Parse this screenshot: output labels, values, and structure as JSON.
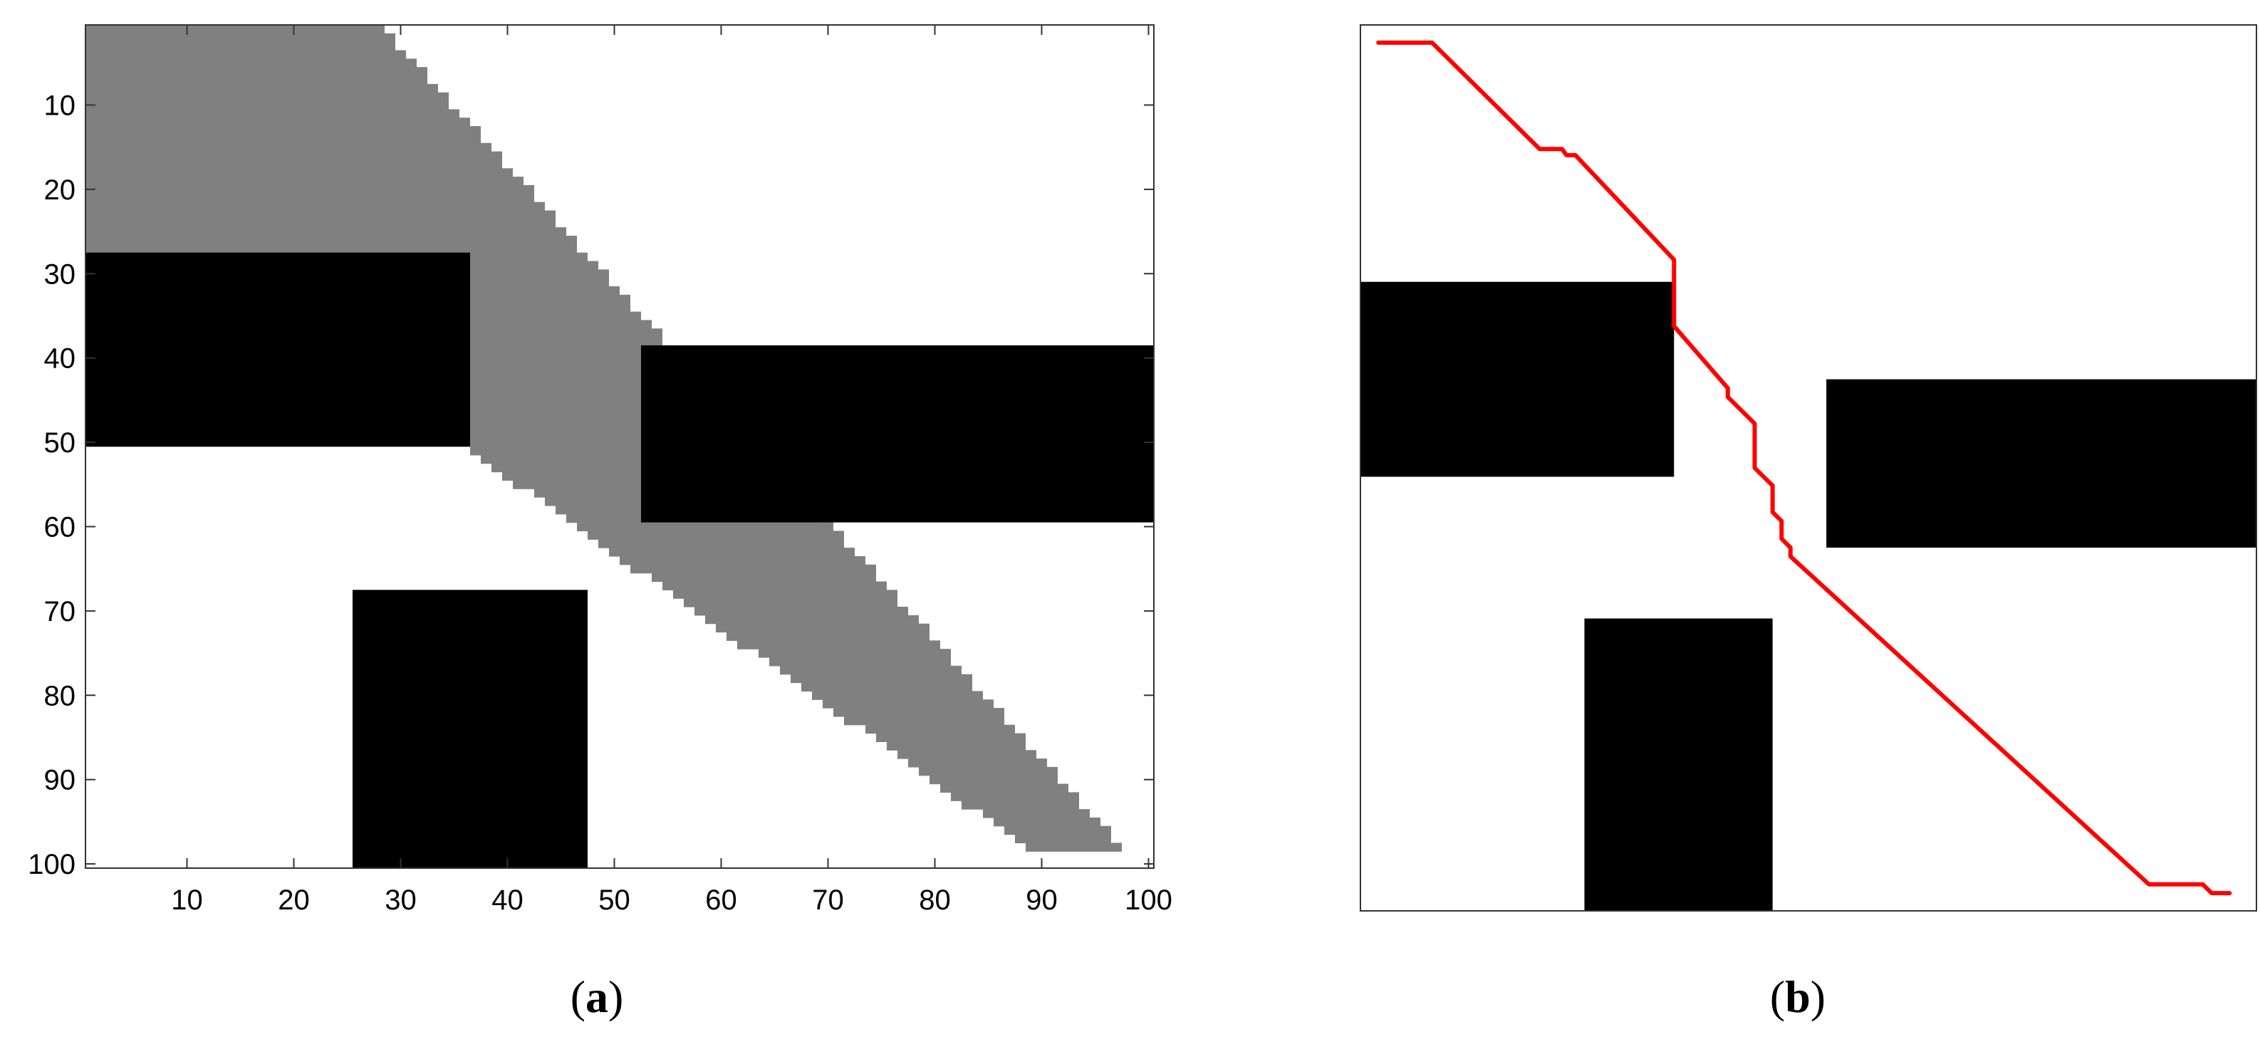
{
  "colors": {
    "free": "#ffffff",
    "obstacle": "#000000",
    "explored": "#808080",
    "path": "#ff0000",
    "frame": "#000000"
  },
  "panel_a": {
    "caption_open": "(",
    "caption_letter": "a",
    "caption_close": ")",
    "axes": {
      "x_range": [
        0.5,
        100.5
      ],
      "y_range": [
        0.5,
        100.5
      ],
      "y_inverted": true,
      "x_ticks": [
        "10",
        "20",
        "30",
        "40",
        "50",
        "60",
        "70",
        "80",
        "90",
        "100"
      ],
      "y_ticks": [
        "10",
        "20",
        "30",
        "40",
        "50",
        "60",
        "70",
        "80",
        "90",
        "100"
      ]
    },
    "obstacles": [
      {
        "x_range": [
          1,
          36
        ],
        "y_range": [
          28,
          50
        ]
      },
      {
        "x_range": [
          53,
          100
        ],
        "y_range": [
          39,
          59
        ]
      },
      {
        "x_range": [
          26,
          47
        ],
        "y_range": [
          68,
          100
        ]
      }
    ],
    "explored_region": {
      "row_range": [
        1,
        98
      ],
      "right_edge_start": {
        "row": 1,
        "col": 28
      },
      "right_edge_end": {
        "row": 98,
        "col": 97
      },
      "left_edge_top_row": 51,
      "left_edge_start_col": 37,
      "left_edge_end_col": 89
    }
  },
  "panel_b": {
    "caption_open": "(",
    "caption_letter": "b",
    "caption_close": ")",
    "axes": {
      "x_range": [
        0.5,
        100.5
      ],
      "y_range": [
        0.5,
        100.5
      ],
      "y_inverted": true
    },
    "obstacles": [
      {
        "x_range": [
          1,
          35
        ],
        "y_range": [
          30,
          51
        ]
      },
      {
        "x_range": [
          53,
          100
        ],
        "y_range": [
          41,
          59
        ]
      },
      {
        "x_range": [
          26,
          46
        ],
        "y_range": [
          68,
          100
        ]
      }
    ],
    "path": [
      [
        2.5,
        2.5
      ],
      [
        8.5,
        2.5
      ],
      [
        20.5,
        14.5
      ],
      [
        23,
        14.5
      ],
      [
        23.5,
        15.2
      ],
      [
        24.5,
        15.2
      ],
      [
        35.5,
        27
      ],
      [
        35.5,
        34.5
      ],
      [
        41.5,
        41.5
      ],
      [
        41.5,
        42.5
      ],
      [
        42.5,
        43.5
      ],
      [
        44.5,
        45.5
      ],
      [
        44.5,
        50.5
      ],
      [
        46.5,
        52.5
      ],
      [
        46.5,
        55.5
      ],
      [
        47.5,
        56.5
      ],
      [
        47.5,
        58.5
      ],
      [
        48.5,
        59.5
      ],
      [
        48.5,
        60.5
      ],
      [
        88.5,
        97.5
      ],
      [
        94.5,
        97.5
      ],
      [
        95.5,
        98.5
      ],
      [
        97.5,
        98.5
      ]
    ]
  }
}
